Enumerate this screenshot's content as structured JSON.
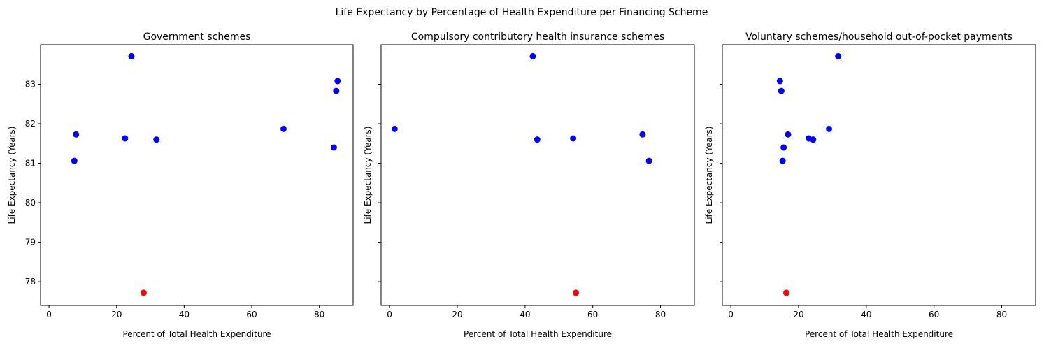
{
  "figure_title": "Life Expectancy by Percentage of Health Expenditure per Financing Scheme",
  "colors": {
    "normal": "#0000ff",
    "highlight": "#ff0000"
  },
  "chart_data": [
    {
      "type": "scatter",
      "title": "Government schemes",
      "xlabel": "Percent of Total Health Expenditure",
      "ylabel": "Life Expectancy (Years)",
      "xlim": [
        -2.5,
        90
      ],
      "ylim": [
        77.4,
        84.0
      ],
      "xticks": [
        0,
        20,
        40,
        60,
        80
      ],
      "yticks": [
        78,
        79,
        80,
        81,
        82,
        83
      ],
      "grid": false,
      "points": [
        {
          "x": 7.5,
          "y": 81.06,
          "highlight": false
        },
        {
          "x": 8.0,
          "y": 81.73,
          "highlight": false
        },
        {
          "x": 22.5,
          "y": 81.63,
          "highlight": false
        },
        {
          "x": 24.4,
          "y": 83.71,
          "highlight": false
        },
        {
          "x": 31.8,
          "y": 81.6,
          "highlight": false
        },
        {
          "x": 69.4,
          "y": 81.87,
          "highlight": false
        },
        {
          "x": 84.3,
          "y": 81.4,
          "highlight": false
        },
        {
          "x": 85.0,
          "y": 82.83,
          "highlight": false
        },
        {
          "x": 85.4,
          "y": 83.08,
          "highlight": false
        },
        {
          "x": 28.0,
          "y": 77.72,
          "highlight": true
        }
      ]
    },
    {
      "type": "scatter",
      "title": "Compulsory contributory health insurance schemes",
      "xlabel": "Percent of Total Health Expenditure",
      "ylabel": "Life Expectancy (Years)",
      "xlim": [
        -2.5,
        90
      ],
      "ylim": [
        77.4,
        84.0
      ],
      "xticks": [
        0,
        20,
        40,
        60,
        80
      ],
      "yticks": [
        78,
        79,
        80,
        81,
        82,
        83
      ],
      "grid": false,
      "points": [
        {
          "x": 1.5,
          "y": 81.87,
          "highlight": false
        },
        {
          "x": 42.3,
          "y": 83.71,
          "highlight": false
        },
        {
          "x": 43.6,
          "y": 81.6,
          "highlight": false
        },
        {
          "x": 54.2,
          "y": 81.63,
          "highlight": false
        },
        {
          "x": 74.7,
          "y": 81.73,
          "highlight": false
        },
        {
          "x": 76.6,
          "y": 81.06,
          "highlight": false
        },
        {
          "x": 55.0,
          "y": 77.72,
          "highlight": true
        }
      ]
    },
    {
      "type": "scatter",
      "title": "Voluntary schemes/household out-of-pocket payments",
      "xlabel": "Percent of Total Health Expenditure",
      "ylabel": "Life Expectancy (Years)",
      "xlim": [
        -2.5,
        90
      ],
      "ylim": [
        77.4,
        84.0
      ],
      "xticks": [
        0,
        20,
        40,
        60,
        80
      ],
      "yticks": [
        78,
        79,
        80,
        81,
        82,
        83
      ],
      "grid": false,
      "points": [
        {
          "x": 14.5,
          "y": 83.08,
          "highlight": false
        },
        {
          "x": 14.9,
          "y": 82.83,
          "highlight": false
        },
        {
          "x": 15.3,
          "y": 81.06,
          "highlight": false
        },
        {
          "x": 15.6,
          "y": 81.4,
          "highlight": false
        },
        {
          "x": 16.9,
          "y": 81.73,
          "highlight": false
        },
        {
          "x": 23.0,
          "y": 81.63,
          "highlight": false
        },
        {
          "x": 24.3,
          "y": 81.6,
          "highlight": false
        },
        {
          "x": 29.0,
          "y": 81.87,
          "highlight": false
        },
        {
          "x": 31.7,
          "y": 83.71,
          "highlight": false
        },
        {
          "x": 16.4,
          "y": 77.72,
          "highlight": true
        }
      ]
    }
  ]
}
